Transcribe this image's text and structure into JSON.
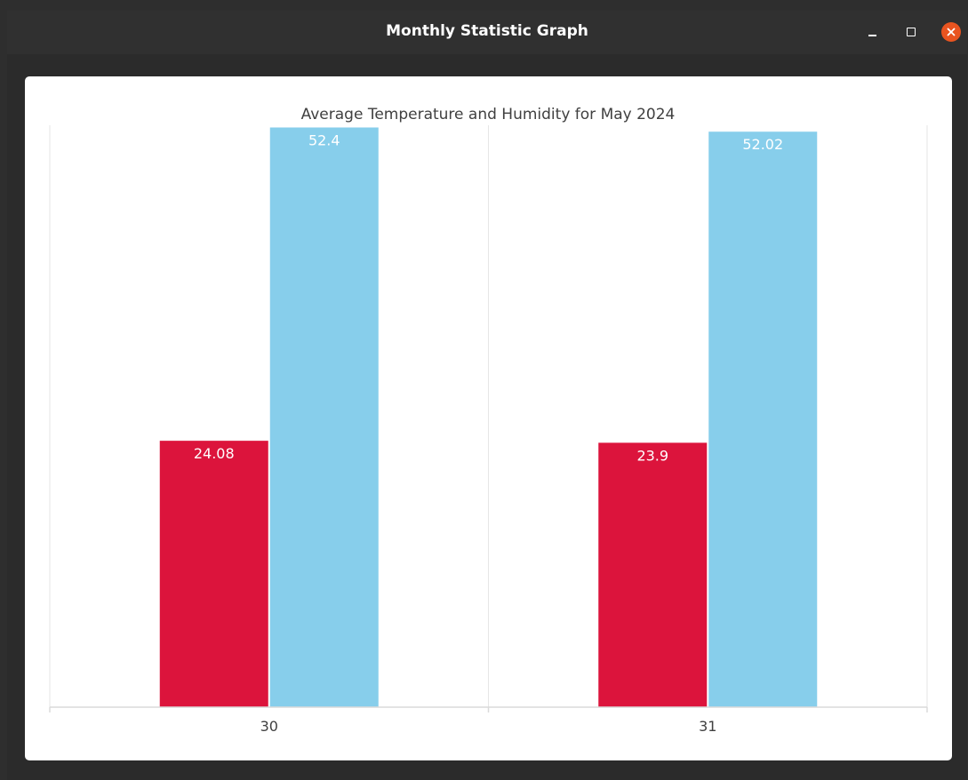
{
  "window": {
    "title": "Monthly Statistic Graph"
  },
  "chart_data": {
    "type": "bar",
    "title": "Average Temperature and Humidity for May 2024",
    "xlabel": "",
    "ylabel": "",
    "categories": [
      "30",
      "31"
    ],
    "series": [
      {
        "color": "#dc143c",
        "values": [
          24.08,
          23.9
        ]
      },
      {
        "color": "#87ceeb",
        "values": [
          52.4,
          52.02
        ]
      }
    ],
    "data_labels": [
      [
        "24.08",
        "23.9"
      ],
      [
        "52.4",
        "52.02"
      ]
    ],
    "ylim": [
      0,
      52.6
    ],
    "grid": true,
    "legend": "none"
  }
}
